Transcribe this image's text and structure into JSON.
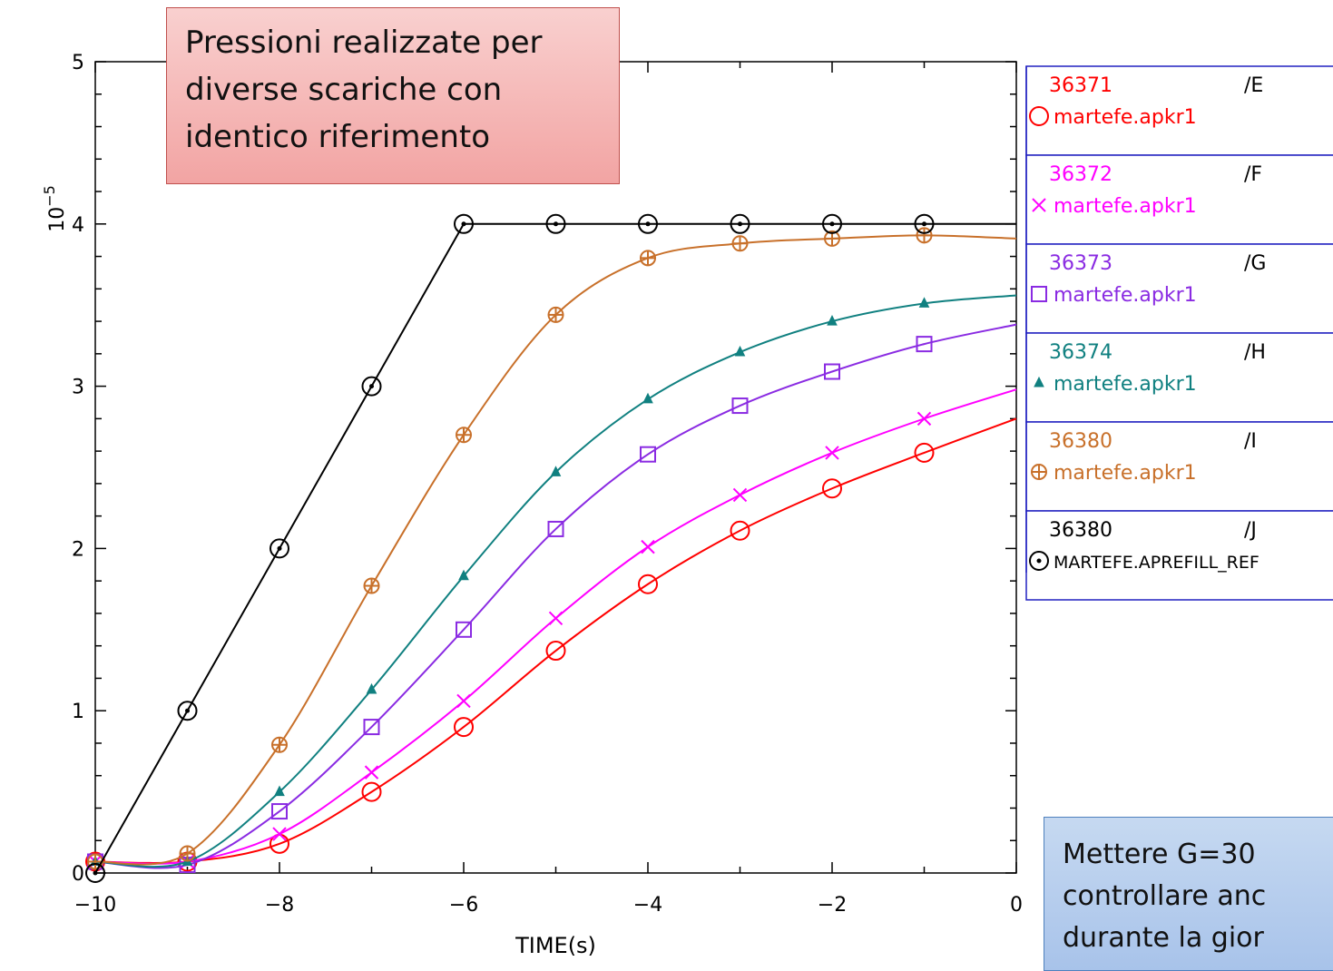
{
  "annotation_red": {
    "lines": [
      "Pressioni realizzate per",
      "diverse scariche con",
      "identico riferimento"
    ]
  },
  "annotation_blue": {
    "lines": [
      "Mettere G=30",
      "controllare anc",
      "durante la gior"
    ]
  },
  "chart_data": {
    "type": "line",
    "title": "",
    "xlabel": "TIME(s)",
    "ylabel": "10^-5",
    "ylabel_base": "10",
    "ylabel_exp": "−5",
    "xlim": [
      -10,
      0
    ],
    "ylim": [
      0,
      5
    ],
    "xticks": [
      -10,
      -8,
      -6,
      -4,
      -2,
      0
    ],
    "xtick_labels": [
      "−10",
      "−8",
      "−6",
      "−4",
      "−2",
      "0"
    ],
    "yticks": [
      0,
      1,
      2,
      3,
      4,
      5
    ],
    "ytick_labels": [
      "0",
      "1",
      "2",
      "3",
      "4",
      "5"
    ],
    "grid": false,
    "legend_position": "right",
    "series": [
      {
        "shot": "36371",
        "tag": "/E",
        "name": "martefe.apkr1",
        "color": "#ff0000",
        "marker": "circle",
        "x": [
          -10,
          -9,
          -8,
          -7,
          -6,
          -5,
          -4,
          -3,
          -2,
          -1,
          0
        ],
        "y": [
          0.07,
          0.07,
          0.18,
          0.5,
          0.9,
          1.37,
          1.78,
          2.11,
          2.37,
          2.59,
          2.8
        ]
      },
      {
        "shot": "36372",
        "tag": "/F",
        "name": "martefe.apkr1",
        "color": "#ff00ff",
        "marker": "x",
        "x": [
          -10,
          -9,
          -8,
          -7,
          -6,
          -5,
          -4,
          -3,
          -2,
          -1,
          0
        ],
        "y": [
          0.07,
          0.07,
          0.24,
          0.62,
          1.06,
          1.57,
          2.01,
          2.33,
          2.59,
          2.8,
          2.98
        ]
      },
      {
        "shot": "36373",
        "tag": "/G",
        "name": "martefe.apkr1",
        "color": "#8a2be2",
        "marker": "square",
        "x": [
          -10,
          -9,
          -8,
          -7,
          -6,
          -5,
          -4,
          -3,
          -2,
          -1,
          0
        ],
        "y": [
          0.07,
          0.05,
          0.38,
          0.9,
          1.5,
          2.12,
          2.58,
          2.88,
          3.09,
          3.26,
          3.38
        ]
      },
      {
        "shot": "36374",
        "tag": "/H",
        "name": "martefe.apkr1",
        "color": "#108080",
        "marker": "triangle",
        "x": [
          -10,
          -9,
          -8,
          -7,
          -6,
          -5,
          -4,
          -3,
          -2,
          -1,
          0
        ],
        "y": [
          0.07,
          0.07,
          0.5,
          1.13,
          1.83,
          2.47,
          2.92,
          3.21,
          3.4,
          3.51,
          3.56
        ]
      },
      {
        "shot": "36380",
        "tag": "/I",
        "name": "martefe.apkr1",
        "color": "#c8702a",
        "marker": "circle-plus",
        "x": [
          -10,
          -9,
          -8,
          -7,
          -6,
          -5,
          -4,
          -3,
          -2,
          -1,
          0
        ],
        "y": [
          0.07,
          0.12,
          0.79,
          1.77,
          2.7,
          3.44,
          3.79,
          3.88,
          3.91,
          3.93,
          3.91
        ]
      },
      {
        "shot": "36380",
        "tag": "/J",
        "name": "MARTEFE.APREFILL_REF",
        "color": "#000000",
        "marker": "circle-dot",
        "x": [
          -10,
          -9,
          -8,
          -7,
          -6,
          -5,
          -4,
          -3,
          -2,
          -1,
          0
        ],
        "y": [
          0.0,
          1.0,
          2.0,
          3.0,
          4.0,
          4.0,
          4.0,
          4.0,
          4.0,
          4.0,
          4.0
        ]
      }
    ]
  }
}
